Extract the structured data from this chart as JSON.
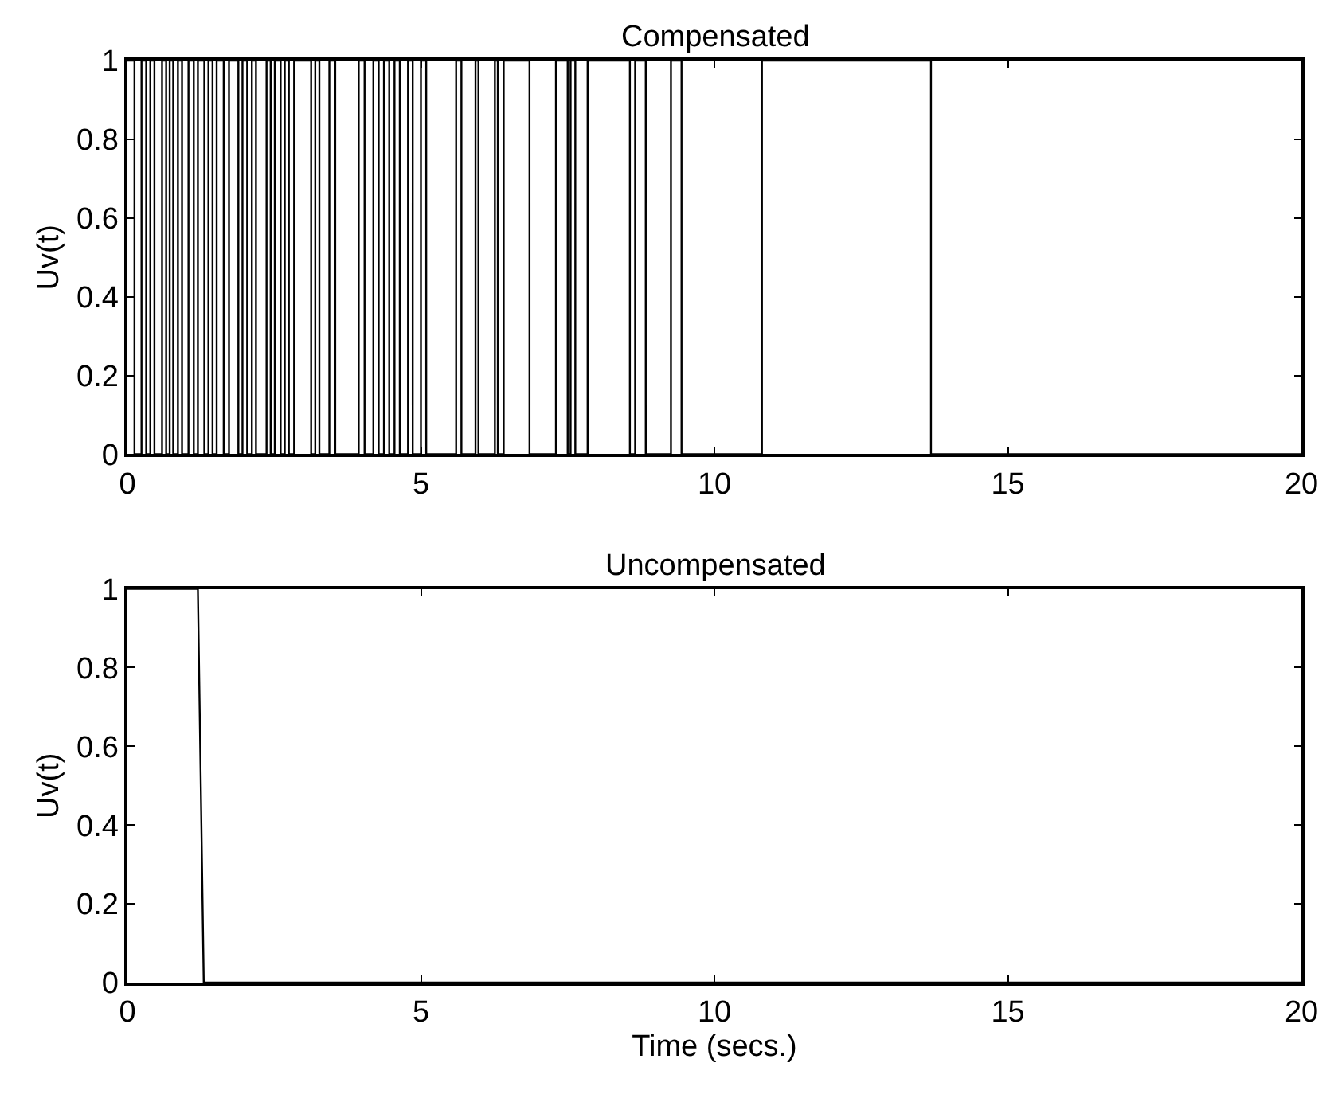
{
  "chart_data": [
    {
      "type": "step",
      "title": "Compensated",
      "ylabel": "Uv(t)",
      "xlim": [
        0,
        20
      ],
      "ylim": [
        0,
        1
      ],
      "xticks": [
        0,
        5,
        10,
        15,
        20
      ],
      "yticks": [
        0,
        0.2,
        0.4,
        0.6,
        0.8,
        1
      ],
      "series": [
        {
          "color": "#000000",
          "x": [
            0,
            0.12,
            0.24,
            0.32,
            0.39,
            0.46,
            0.59,
            0.66,
            0.72,
            0.78,
            0.86,
            0.93,
            1.04,
            1.13,
            1.2,
            1.31,
            1.38,
            1.45,
            1.52,
            1.64,
            1.73,
            1.89,
            1.96,
            2.04,
            2.12,
            2.19,
            2.37,
            2.44,
            2.51,
            2.61,
            2.68,
            2.75,
            2.84,
            3.13,
            3.2,
            3.27,
            3.44,
            3.54,
            3.94,
            4.04,
            4.19,
            4.28,
            4.37,
            4.46,
            4.55,
            4.64,
            4.78,
            4.86,
            5.0,
            5.09,
            5.6,
            5.69,
            5.93,
            5.98,
            6.26,
            6.31,
            6.41,
            6.85,
            7.3,
            7.5,
            7.55,
            7.63,
            7.84,
            8.56,
            8.65,
            8.83,
            9.26,
            9.44,
            10.81,
            13.69,
            20
          ],
          "values": [
            1,
            0,
            1,
            0,
            1,
            0,
            1,
            0,
            1,
            0,
            1,
            0,
            1,
            0,
            1,
            0,
            1,
            0,
            1,
            0,
            1,
            0,
            1,
            0,
            1,
            0,
            1,
            0,
            1,
            0,
            1,
            0,
            1,
            0,
            1,
            0,
            1,
            0,
            1,
            0,
            1,
            0,
            1,
            0,
            1,
            0,
            1,
            0,
            1,
            0,
            1,
            0,
            1,
            0,
            1,
            0,
            1,
            0,
            1,
            0,
            1,
            0,
            1,
            0,
            1,
            0,
            1,
            0,
            1,
            0,
            0
          ]
        }
      ]
    },
    {
      "type": "line",
      "title": "Uncompensated",
      "ylabel": "Uv(t)",
      "xlabel": "Time (secs.)",
      "xlim": [
        0,
        20
      ],
      "ylim": [
        0,
        1
      ],
      "xticks": [
        0,
        5,
        10,
        15,
        20
      ],
      "yticks": [
        0,
        0.2,
        0.4,
        0.6,
        0.8,
        1
      ],
      "series": [
        {
          "color": "#000000",
          "x": [
            0,
            1.2,
            1.3,
            20
          ],
          "values": [
            1,
            1,
            0,
            0
          ]
        }
      ]
    }
  ]
}
